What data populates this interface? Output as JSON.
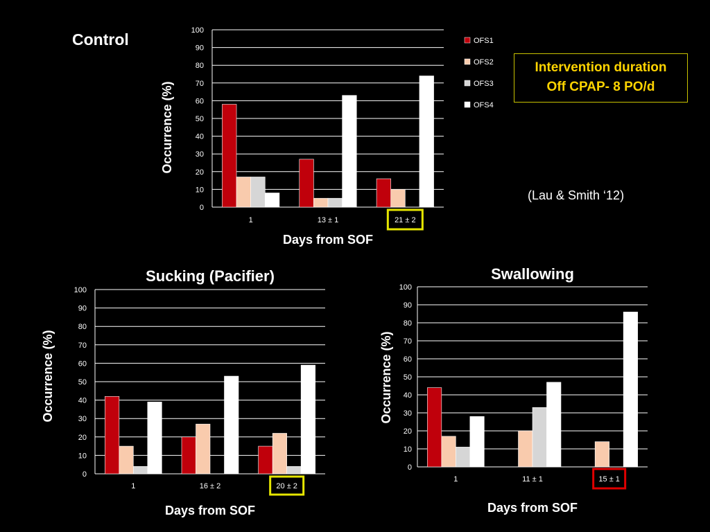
{
  "slide": {
    "title": "Control",
    "note_line1": "Intervention duration",
    "note_line2": "Off CPAP- 8 PO/d",
    "citation": "(Lau & Smith ‘12)"
  },
  "colors": {
    "OFS1": "#c0000b",
    "OFS2": "#f9cbad",
    "OFS3": "#d6d6d6",
    "OFS4": "#ffffff",
    "highlight_yellow": "#e6e600",
    "highlight_red": "#e00000",
    "note_text": "#ffd400"
  },
  "chart_data": [
    {
      "type": "bar",
      "title": "",
      "xlabel": "Days from SOF",
      "ylabel": "Occurrence (%)",
      "ylim": [
        0,
        100
      ],
      "yticks": [
        0,
        10,
        20,
        30,
        40,
        50,
        60,
        70,
        80,
        90,
        100
      ],
      "grid": true,
      "legend": "right",
      "categories": [
        "1",
        "13 ± 1",
        "21 ± 2"
      ],
      "highlight_category": "21 ± 2",
      "highlight_color": "yellow",
      "series": [
        {
          "name": "OFS1",
          "values": [
            58,
            27,
            16
          ]
        },
        {
          "name": "OFS2",
          "values": [
            17,
            5,
            10
          ]
        },
        {
          "name": "OFS3",
          "values": [
            17,
            5,
            0
          ]
        },
        {
          "name": "OFS4",
          "values": [
            8,
            63,
            74
          ]
        }
      ]
    },
    {
      "type": "bar",
      "title": "Sucking (Pacifier)",
      "xlabel": "Days from SOF",
      "ylabel": "Occurrence (%)",
      "ylim": [
        0,
        100
      ],
      "yticks": [
        0,
        10,
        20,
        30,
        40,
        50,
        60,
        70,
        80,
        90,
        100
      ],
      "grid": true,
      "legend": "none",
      "categories": [
        "1",
        "16 ± 2",
        "20 ± 2"
      ],
      "highlight_category": "20 ± 2",
      "highlight_color": "yellow",
      "series": [
        {
          "name": "OFS1",
          "values": [
            42,
            20,
            15
          ]
        },
        {
          "name": "OFS2",
          "values": [
            15,
            27,
            22
          ]
        },
        {
          "name": "OFS3",
          "values": [
            4,
            0,
            4
          ]
        },
        {
          "name": "OFS4",
          "values": [
            39,
            53,
            59
          ]
        }
      ]
    },
    {
      "type": "bar",
      "title": "Swallowing",
      "xlabel": "Days from SOF",
      "ylabel": "Occurrence (%)",
      "ylim": [
        0,
        100
      ],
      "yticks": [
        0,
        10,
        20,
        30,
        40,
        50,
        60,
        70,
        80,
        90,
        100
      ],
      "grid": true,
      "legend": "none",
      "categories": [
        "1",
        "11 ± 1",
        "15 ± 1"
      ],
      "highlight_category": "15 ± 1",
      "highlight_color": "red",
      "series": [
        {
          "name": "OFS1",
          "values": [
            44,
            0,
            0
          ]
        },
        {
          "name": "OFS2",
          "values": [
            17,
            20,
            14
          ]
        },
        {
          "name": "OFS3",
          "values": [
            11,
            33,
            0
          ]
        },
        {
          "name": "OFS4",
          "values": [
            28,
            47,
            86
          ]
        }
      ]
    }
  ]
}
